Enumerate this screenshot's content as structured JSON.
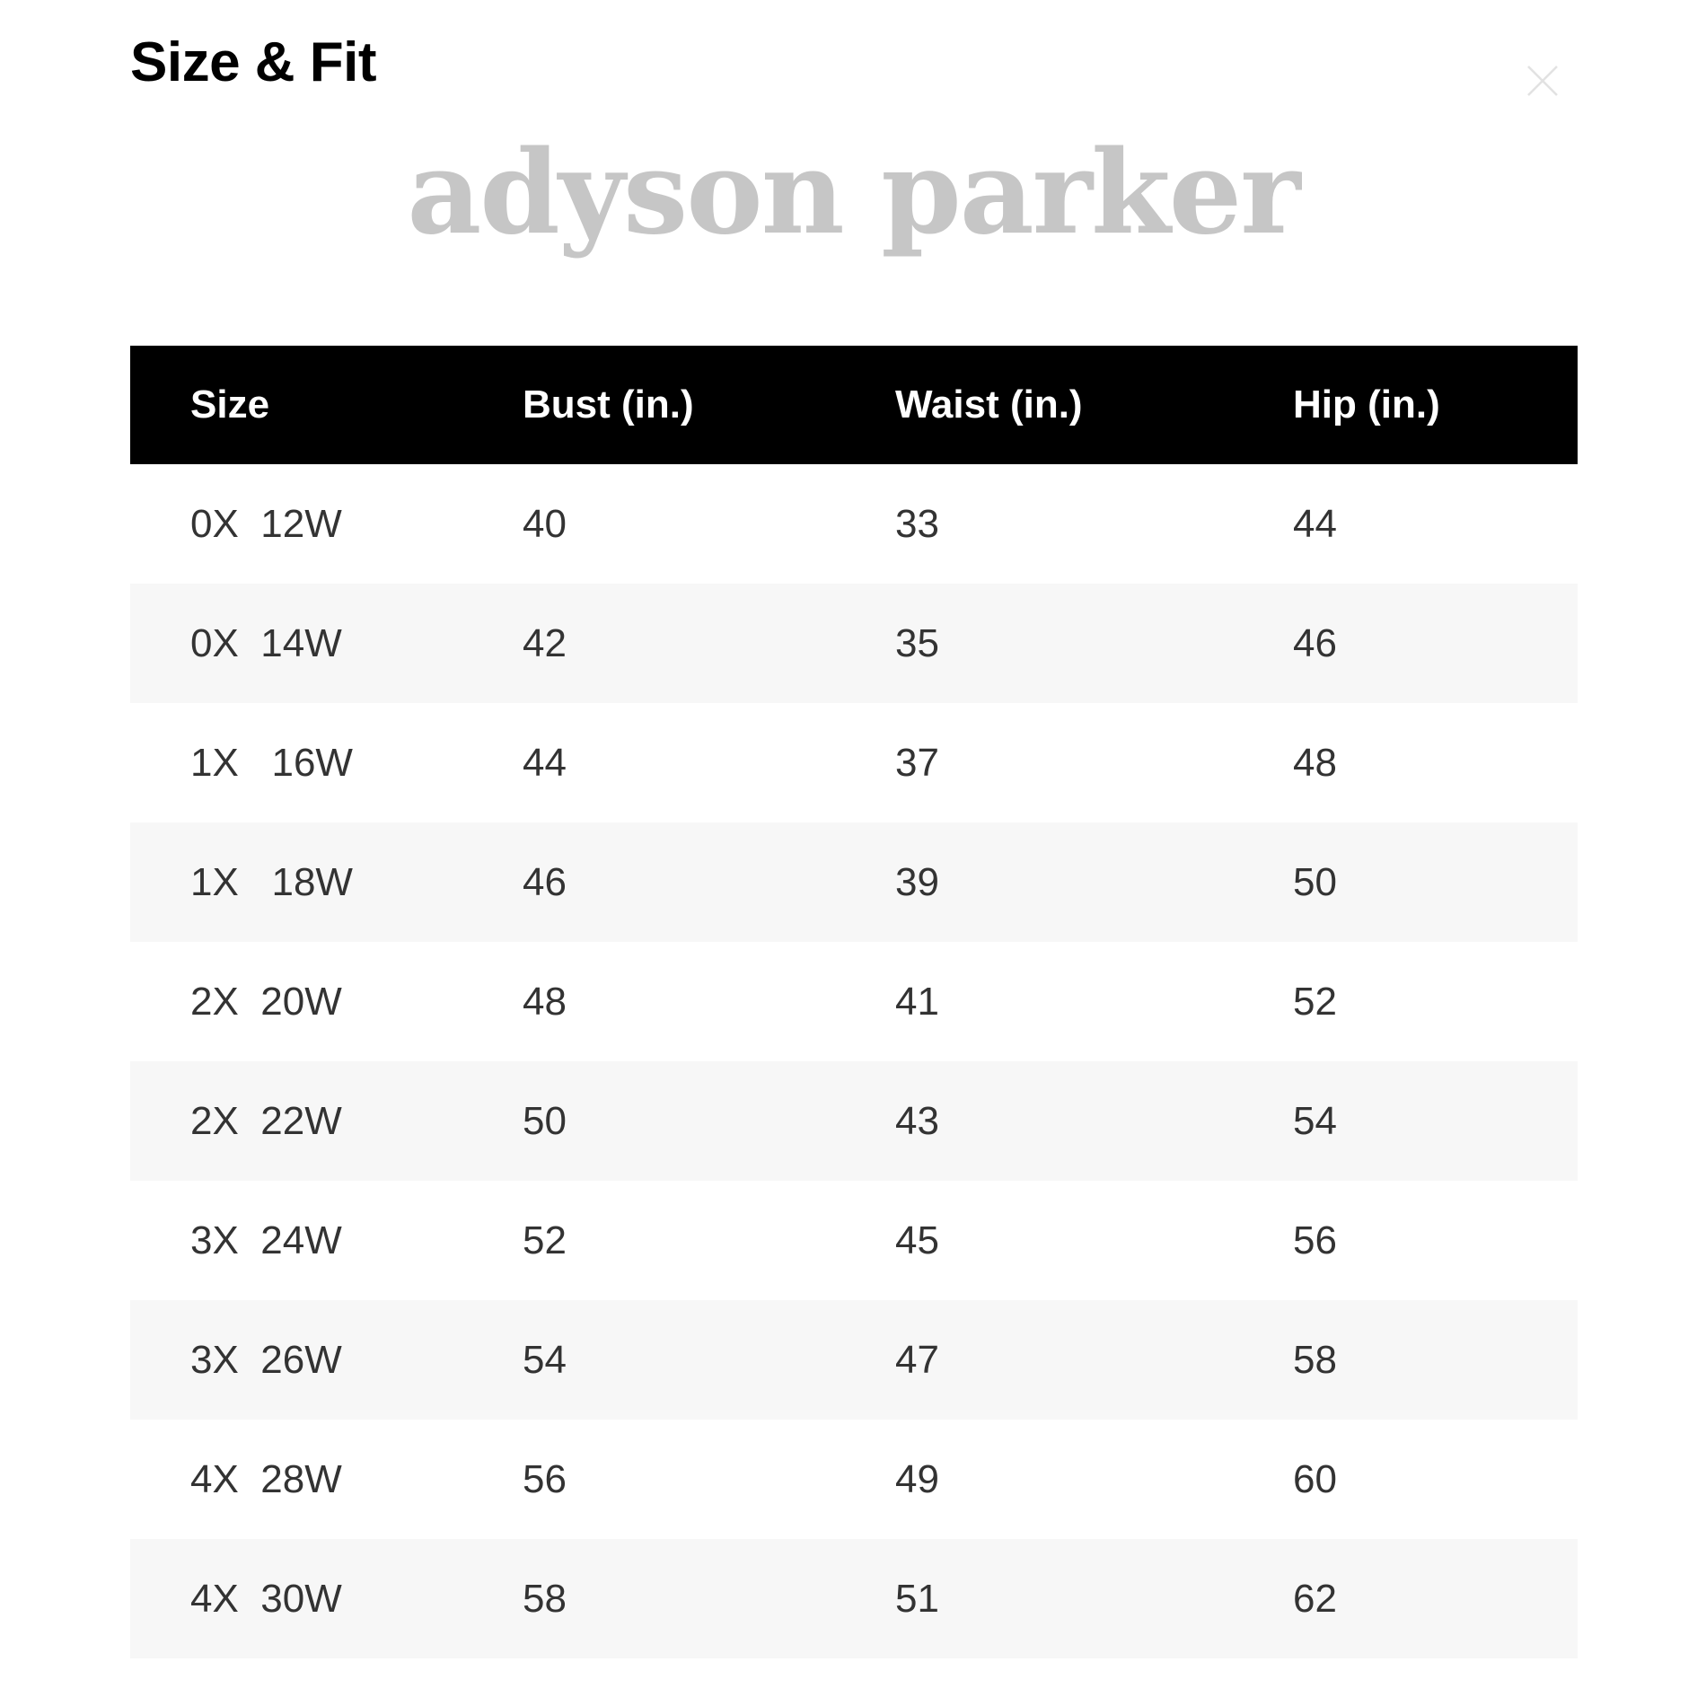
{
  "modal": {
    "title": "Size & Fit",
    "close_icon": "close-icon",
    "brand_logo": "adyson parker"
  },
  "table": {
    "headers": [
      "Size",
      "Bust (in.)",
      "Waist (in.)",
      "Hip (in.)"
    ],
    "rows": [
      [
        "0X  12W",
        "40",
        "33",
        "44"
      ],
      [
        "0X  14W",
        "42",
        "35",
        "46"
      ],
      [
        "1X   16W",
        "44",
        "37",
        "48"
      ],
      [
        "1X   18W",
        "46",
        "39",
        "50"
      ],
      [
        "2X  20W",
        "48",
        "41",
        "52"
      ],
      [
        "2X  22W",
        "50",
        "43",
        "54"
      ],
      [
        "3X  24W",
        "52",
        "45",
        "56"
      ],
      [
        "3X  26W",
        "54",
        "47",
        "58"
      ],
      [
        "4X  28W",
        "56",
        "49",
        "60"
      ],
      [
        "4X  30W",
        "58",
        "51",
        "62"
      ]
    ]
  },
  "colors": {
    "header_bg": "#000000",
    "stripe": "#f7f7f7",
    "logo": "#c6c6c6"
  }
}
